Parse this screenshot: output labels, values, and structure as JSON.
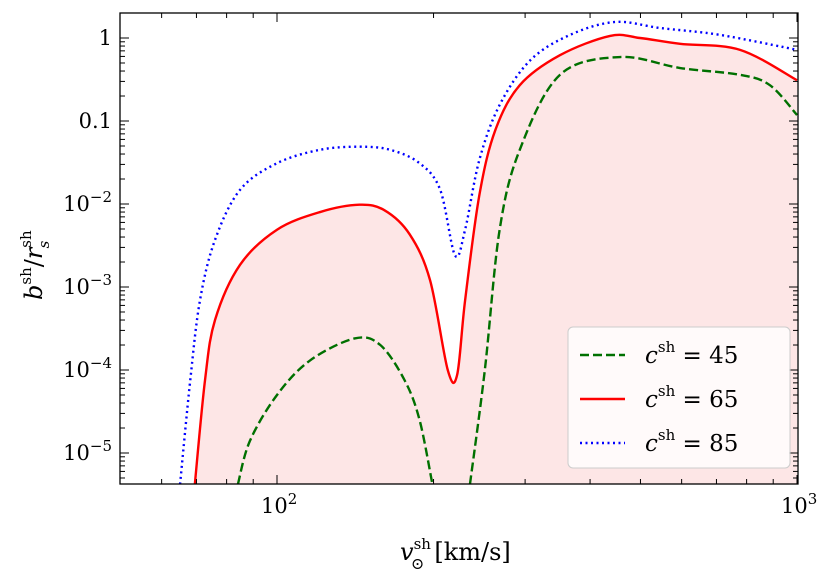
{
  "chart_data": {
    "type": "line",
    "title": "",
    "xlabel": {
      "main": "v",
      "sub": "⊙",
      "sup": "sh",
      "unit": "[km/s]"
    },
    "ylabel": {
      "main": "b",
      "sup": "sh",
      "slash": "/",
      "main2": "r",
      "sub2": "s",
      "sup2": "sh"
    },
    "xscale": "log",
    "yscale": "log",
    "xlim": [
      50,
      1000
    ],
    "ylim": [
      4.2e-06,
      2.0
    ],
    "xticks": [
      {
        "value": 100,
        "base": "10",
        "exp": "2"
      },
      {
        "value": 1000,
        "base": "10",
        "exp": "3"
      }
    ],
    "yticks": [
      {
        "value": 1,
        "label": "1"
      },
      {
        "value": 0.1,
        "label": "0.1"
      },
      {
        "value": 0.01,
        "base": "10",
        "exp": "−2"
      },
      {
        "value": 0.001,
        "base": "10",
        "exp": "−3"
      },
      {
        "value": 0.0001,
        "base": "10",
        "exp": "−4"
      },
      {
        "value": 1e-05,
        "base": "10",
        "exp": "−5"
      }
    ],
    "legend_position": "bottom-right",
    "fill": {
      "under_series": "c^sh = 65",
      "color": "#fde6e6"
    },
    "series": [
      {
        "name": "c^sh = 45",
        "label_main": "c",
        "label_sup": "sh",
        "label_val": " = 45",
        "color": "#007000",
        "style": "dashed",
        "segments": [
          [
            [
              84.1,
              4.2e-06
            ],
            [
              88.7,
              1.4e-05
            ],
            [
              100,
              5e-05
            ],
            [
              115.7,
              0.00013
            ],
            [
              141,
              0.00024
            ],
            [
              158,
              0.0002
            ],
            [
              176,
              7.5e-05
            ],
            [
              188,
              2.5e-05
            ],
            [
              199,
              4.2e-06
            ]
          ],
          [
            [
              235,
              4.2e-06
            ],
            [
              251,
              0.0001
            ],
            [
              268,
              0.0049
            ],
            [
              293,
              0.045
            ],
            [
              350,
              0.36
            ],
            [
              457,
              0.59
            ],
            [
              596,
              0.435
            ],
            [
              777,
              0.36
            ],
            [
              887,
              0.27
            ],
            [
              1000,
              0.118
            ]
          ]
        ]
      },
      {
        "name": "c^sh = 65",
        "label_main": "c",
        "label_sup": "sh",
        "label_val": " = 65",
        "color": "#ff0000",
        "style": "solid",
        "segments": [
          [
            [
              69.5,
              4.2e-06
            ],
            [
              72.7,
              7.5e-05
            ],
            [
              76,
              0.0004
            ],
            [
              84.9,
              0.00185
            ],
            [
              100,
              0.0049
            ],
            [
              121,
              0.008
            ],
            [
              144,
              0.0098
            ],
            [
              161,
              0.0084
            ],
            [
              180,
              0.0043
            ],
            [
              197,
              0.0012
            ],
            [
              213,
              0.0001
            ],
            [
              222,
              8.7e-05
            ],
            [
              230,
              0.00069
            ],
            [
              245,
              0.0128
            ],
            [
              263,
              0.078
            ],
            [
              293,
              0.27
            ],
            [
              350,
              0.62
            ],
            [
              437,
              1.06
            ],
            [
              499,
              1.0
            ],
            [
              596,
              0.85
            ],
            [
              777,
              0.72
            ],
            [
              1000,
              0.31
            ]
          ]
        ]
      },
      {
        "name": "c^sh = 85",
        "label_main": "c",
        "label_sup": "sh",
        "label_val": " = 85",
        "color": "#0000ff",
        "style": "dotted",
        "segments": [
          [
            [
              65.1,
              4.2e-06
            ],
            [
              68.1,
              7.5e-05
            ],
            [
              71.1,
              0.00069
            ],
            [
              76,
              0.0037
            ],
            [
              84.9,
              0.0148
            ],
            [
              100,
              0.031
            ],
            [
              121,
              0.045
            ],
            [
              144,
              0.049
            ],
            [
              165,
              0.045
            ],
            [
              188,
              0.031
            ],
            [
              206,
              0.0148
            ],
            [
              220,
              0.0024
            ],
            [
              230,
              0.0049
            ],
            [
              245,
              0.034
            ],
            [
              268,
              0.156
            ],
            [
              307,
              0.54
            ],
            [
              366,
              1.09
            ],
            [
              447,
              1.56
            ],
            [
              545,
              1.32
            ],
            [
              711,
              1.09
            ],
            [
              1000,
              0.72
            ]
          ]
        ]
      }
    ]
  }
}
